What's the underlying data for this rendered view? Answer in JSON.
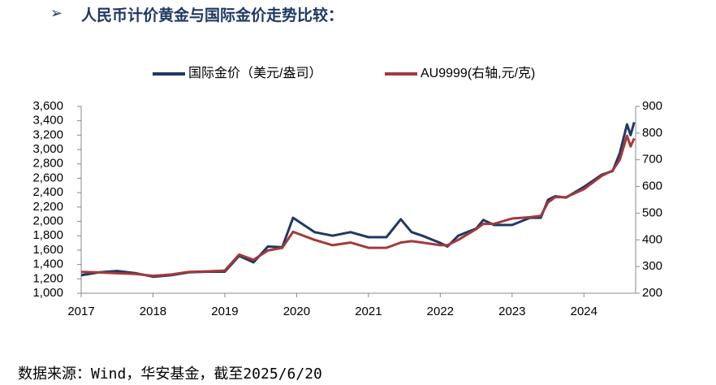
{
  "heading": "人民币计价黄金与国际金价走势比较：",
  "source": "数据来源：Wind，华安基金，截至2025/6/20",
  "chart_data": {
    "type": "line",
    "x": [
      2017.0,
      2017.25,
      2017.5,
      2017.75,
      2018.0,
      2018.25,
      2018.5,
      2018.75,
      2019.0,
      2019.2,
      2019.4,
      2019.6,
      2019.8,
      2019.95,
      2020.25,
      2020.5,
      2020.75,
      2021.0,
      2021.25,
      2021.45,
      2021.6,
      2021.75,
      2022.0,
      2022.1,
      2022.25,
      2022.5,
      2022.6,
      2022.75,
      2023.0,
      2023.25,
      2023.4,
      2023.5,
      2023.6,
      2023.75,
      2024.0,
      2024.25,
      2024.4,
      2024.5,
      2024.6,
      2024.65,
      2024.7
    ],
    "series": [
      {
        "name": "国际金价（美元/盎司）",
        "color": "#1f3864",
        "axis": "y",
        "values": [
          1250,
          1290,
          1310,
          1280,
          1230,
          1250,
          1290,
          1300,
          1300,
          1520,
          1430,
          1650,
          1640,
          2050,
          1850,
          1800,
          1850,
          1780,
          1780,
          2030,
          1850,
          1800,
          1700,
          1650,
          1800,
          1900,
          2020,
          1950,
          1950,
          2050,
          2050,
          2300,
          2350,
          2330,
          2480,
          2650,
          2700,
          2950,
          3350,
          3200,
          3380
        ]
      },
      {
        "name": "AU9999(右轴,元/克)",
        "color": "#a33a3a",
        "axis": "y2",
        "values": [
          280,
          278,
          275,
          272,
          265,
          270,
          280,
          282,
          285,
          345,
          325,
          360,
          370,
          430,
          400,
          380,
          390,
          370,
          370,
          390,
          395,
          390,
          380,
          380,
          400,
          440,
          460,
          460,
          480,
          485,
          490,
          540,
          560,
          560,
          590,
          640,
          660,
          700,
          790,
          750,
          780
        ]
      }
    ],
    "xlim": [
      2017,
      2024.72
    ],
    "xticks": [
      2017,
      2018,
      2019,
      2020,
      2021,
      2022,
      2023,
      2024
    ],
    "ylim": [
      1000,
      3600
    ],
    "yticks": [
      {
        "value": 1000,
        "label": "1,000"
      },
      {
        "value": 1200,
        "label": "1,200"
      },
      {
        "value": 1400,
        "label": "1,400"
      },
      {
        "value": 1600,
        "label": "1,600"
      },
      {
        "value": 1800,
        "label": "1,800"
      },
      {
        "value": 2000,
        "label": "2,000"
      },
      {
        "value": 2200,
        "label": "2,200"
      },
      {
        "value": 2400,
        "label": "2,400"
      },
      {
        "value": 2600,
        "label": "2,600"
      },
      {
        "value": 2800,
        "label": "2,800"
      },
      {
        "value": 3000,
        "label": "3,000"
      },
      {
        "value": 3200,
        "label": "3,200"
      },
      {
        "value": 3400,
        "label": "3,400"
      },
      {
        "value": 3600,
        "label": "3,600"
      }
    ],
    "y2lim": [
      200,
      900
    ],
    "y2ticks": [
      200,
      300,
      400,
      500,
      600,
      700,
      800,
      900
    ],
    "legend": "top"
  }
}
